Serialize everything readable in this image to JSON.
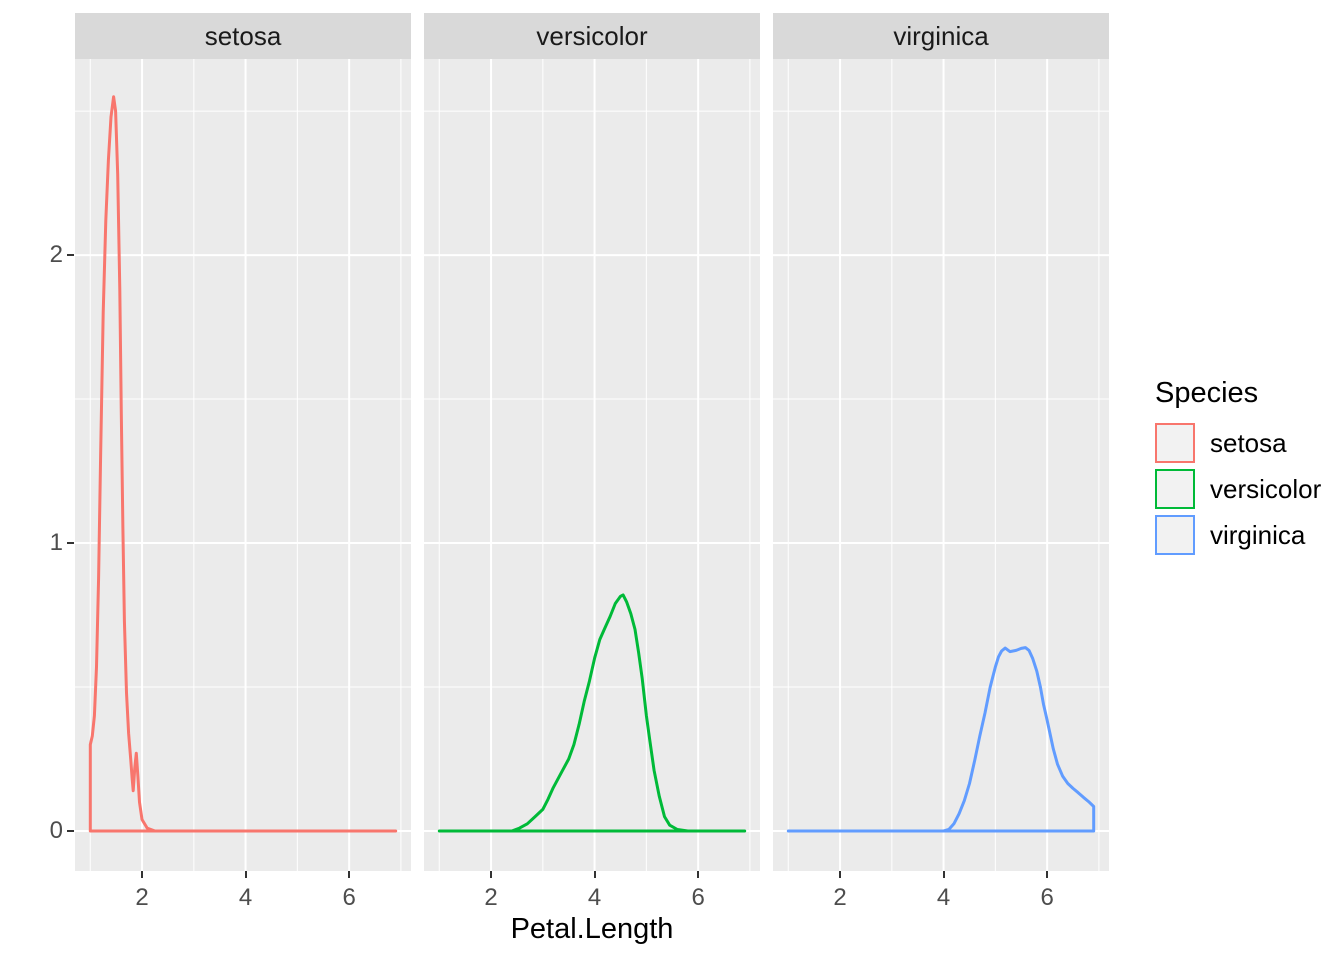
{
  "chart_data": {
    "type": "area",
    "subtype": "faceted-density",
    "title": "",
    "xlabel": "Petal.Length",
    "ylabel": "",
    "x_range": [
      0.705,
      7.195
    ],
    "y_range": [
      -0.139,
      2.681
    ],
    "x_ticks": [
      2,
      4,
      6
    ],
    "x_minor_ticks": [
      1,
      3,
      5,
      7
    ],
    "y_ticks": [
      0,
      1,
      2
    ],
    "y_minor_ticks": [
      0.5,
      1.5,
      2.5
    ],
    "grid": "on",
    "panel_background": "#ebebeb",
    "strip_background": "#d9d9d9",
    "gridline_color": "#ffffff",
    "tick_color": "#333333",
    "tick_label_color": "#4d4d4d",
    "legend": {
      "title": "Species",
      "position": "right",
      "entries": [
        {
          "label": "setosa",
          "color": "#F8766D"
        },
        {
          "label": "versicolor",
          "color": "#00BA38"
        },
        {
          "label": "virginica",
          "color": "#619CFF"
        }
      ]
    },
    "facets": [
      {
        "label": "setosa",
        "color": "#F8766D",
        "series_name": "density of Petal.Length (setosa)",
        "points": [
          [
            1.0,
            0
          ],
          [
            1.0,
            0.3
          ],
          [
            1.04,
            0.33
          ],
          [
            1.08,
            0.4
          ],
          [
            1.12,
            0.57
          ],
          [
            1.16,
            0.88
          ],
          [
            1.2,
            1.3
          ],
          [
            1.25,
            1.8
          ],
          [
            1.3,
            2.12
          ],
          [
            1.35,
            2.33
          ],
          [
            1.4,
            2.48
          ],
          [
            1.45,
            2.55
          ],
          [
            1.49,
            2.5
          ],
          [
            1.53,
            2.28
          ],
          [
            1.57,
            1.88
          ],
          [
            1.6,
            1.45
          ],
          [
            1.63,
            1.05
          ],
          [
            1.66,
            0.73
          ],
          [
            1.7,
            0.48
          ],
          [
            1.74,
            0.34
          ],
          [
            1.78,
            0.25
          ],
          [
            1.81,
            0.18
          ],
          [
            1.83,
            0.14
          ],
          [
            1.86,
            0.22
          ],
          [
            1.89,
            0.27
          ],
          [
            1.92,
            0.19
          ],
          [
            1.95,
            0.1
          ],
          [
            2.0,
            0.04
          ],
          [
            2.1,
            0.01
          ],
          [
            2.25,
            0
          ],
          [
            6.9,
            0
          ]
        ]
      },
      {
        "label": "versicolor",
        "color": "#00BA38",
        "series_name": "density of Petal.Length (versicolor)",
        "points": [
          [
            1.0,
            0
          ],
          [
            2.4,
            0
          ],
          [
            2.55,
            0.01
          ],
          [
            2.7,
            0.025
          ],
          [
            2.85,
            0.05
          ],
          [
            3.0,
            0.075
          ],
          [
            3.1,
            0.11
          ],
          [
            3.2,
            0.15
          ],
          [
            3.35,
            0.2
          ],
          [
            3.5,
            0.25
          ],
          [
            3.6,
            0.3
          ],
          [
            3.7,
            0.37
          ],
          [
            3.8,
            0.45
          ],
          [
            3.9,
            0.52
          ],
          [
            4.0,
            0.6
          ],
          [
            4.1,
            0.665
          ],
          [
            4.2,
            0.705
          ],
          [
            4.3,
            0.745
          ],
          [
            4.4,
            0.79
          ],
          [
            4.5,
            0.815
          ],
          [
            4.55,
            0.82
          ],
          [
            4.62,
            0.795
          ],
          [
            4.7,
            0.755
          ],
          [
            4.78,
            0.7
          ],
          [
            4.85,
            0.62
          ],
          [
            4.92,
            0.53
          ],
          [
            5.0,
            0.4
          ],
          [
            5.07,
            0.31
          ],
          [
            5.15,
            0.21
          ],
          [
            5.25,
            0.12
          ],
          [
            5.35,
            0.05
          ],
          [
            5.45,
            0.02
          ],
          [
            5.6,
            0.005
          ],
          [
            5.8,
            0
          ],
          [
            6.9,
            0
          ]
        ]
      },
      {
        "label": "virginica",
        "color": "#619CFF",
        "series_name": "density of Petal.Length (virginica)",
        "points": [
          [
            1.0,
            0
          ],
          [
            4.0,
            0
          ],
          [
            4.1,
            0.005
          ],
          [
            4.2,
            0.025
          ],
          [
            4.3,
            0.06
          ],
          [
            4.4,
            0.105
          ],
          [
            4.5,
            0.165
          ],
          [
            4.6,
            0.245
          ],
          [
            4.7,
            0.33
          ],
          [
            4.8,
            0.41
          ],
          [
            4.9,
            0.5
          ],
          [
            5.0,
            0.57
          ],
          [
            5.06,
            0.605
          ],
          [
            5.12,
            0.625
          ],
          [
            5.19,
            0.635
          ],
          [
            5.28,
            0.623
          ],
          [
            5.4,
            0.627
          ],
          [
            5.5,
            0.634
          ],
          [
            5.58,
            0.637
          ],
          [
            5.65,
            0.627
          ],
          [
            5.72,
            0.6
          ],
          [
            5.8,
            0.555
          ],
          [
            5.87,
            0.5
          ],
          [
            5.93,
            0.44
          ],
          [
            6.0,
            0.385
          ],
          [
            6.06,
            0.335
          ],
          [
            6.12,
            0.285
          ],
          [
            6.2,
            0.232
          ],
          [
            6.3,
            0.19
          ],
          [
            6.4,
            0.165
          ],
          [
            6.5,
            0.148
          ],
          [
            6.6,
            0.133
          ],
          [
            6.7,
            0.117
          ],
          [
            6.8,
            0.102
          ],
          [
            6.9,
            0.085
          ],
          [
            6.9,
            0
          ]
        ]
      }
    ]
  }
}
